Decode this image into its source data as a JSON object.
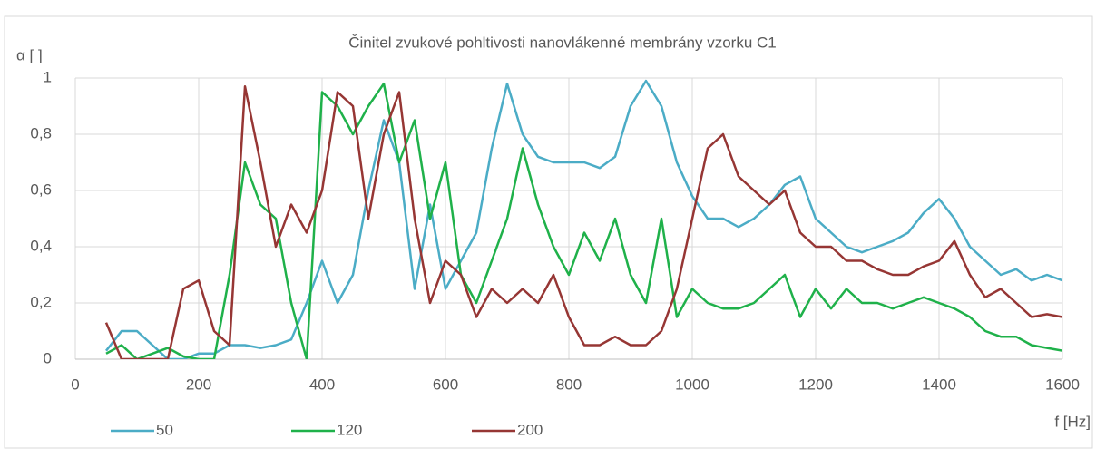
{
  "chart_data": {
    "type": "line",
    "title": "Činitel zvukové pohltivosti nanovlákenné membrány vzorku C1",
    "y_label": "α [ ]",
    "x_label": "f [Hz]",
    "x": [
      50,
      75,
      100,
      125,
      150,
      175,
      200,
      225,
      250,
      275,
      300,
      325,
      350,
      375,
      400,
      425,
      450,
      475,
      500,
      525,
      550,
      575,
      600,
      625,
      650,
      675,
      700,
      725,
      750,
      775,
      800,
      825,
      850,
      875,
      900,
      925,
      950,
      975,
      1000,
      1025,
      1050,
      1075,
      1100,
      1125,
      1150,
      1175,
      1200,
      1225,
      1250,
      1275,
      1300,
      1325,
      1350,
      1375,
      1400,
      1425,
      1450,
      1475,
      1500,
      1525,
      1550,
      1575,
      1600
    ],
    "series": [
      {
        "name": "50",
        "color": "#4bacc6",
        "values": [
          0.03,
          0.1,
          0.1,
          0.05,
          0.0,
          0.0,
          0.02,
          0.02,
          0.05,
          0.05,
          0.04,
          0.05,
          0.07,
          0.2,
          0.35,
          0.2,
          0.3,
          0.6,
          0.85,
          0.7,
          0.25,
          0.55,
          0.25,
          0.35,
          0.45,
          0.75,
          0.98,
          0.8,
          0.72,
          0.7,
          0.7,
          0.7,
          0.68,
          0.72,
          0.9,
          0.99,
          0.9,
          0.7,
          0.58,
          0.5,
          0.5,
          0.47,
          0.5,
          0.55,
          0.62,
          0.65,
          0.5,
          0.45,
          0.4,
          0.38,
          0.4,
          0.42,
          0.45,
          0.52,
          0.57,
          0.5,
          0.4,
          0.35,
          0.3,
          0.32,
          0.28,
          0.3,
          0.28
        ]
      },
      {
        "name": "120",
        "color": "#1fb14a",
        "values": [
          0.02,
          0.05,
          0.0,
          0.02,
          0.04,
          0.01,
          0.0,
          0.0,
          0.3,
          0.7,
          0.55,
          0.5,
          0.2,
          0.0,
          0.95,
          0.9,
          0.8,
          0.9,
          0.98,
          0.7,
          0.85,
          0.5,
          0.7,
          0.3,
          0.2,
          0.35,
          0.5,
          0.75,
          0.55,
          0.4,
          0.3,
          0.45,
          0.35,
          0.5,
          0.3,
          0.2,
          0.5,
          0.15,
          0.25,
          0.2,
          0.18,
          0.18,
          0.2,
          0.25,
          0.3,
          0.15,
          0.25,
          0.18,
          0.25,
          0.2,
          0.2,
          0.18,
          0.2,
          0.22,
          0.2,
          0.18,
          0.15,
          0.1,
          0.08,
          0.08,
          0.05,
          0.04,
          0.03
        ]
      },
      {
        "name": "200",
        "color": "#963634",
        "values": [
          0.13,
          0.0,
          0.0,
          0.0,
          0.0,
          0.25,
          0.28,
          0.1,
          0.05,
          0.97,
          0.7,
          0.4,
          0.55,
          0.45,
          0.6,
          0.95,
          0.9,
          0.5,
          0.8,
          0.95,
          0.5,
          0.2,
          0.35,
          0.3,
          0.15,
          0.25,
          0.2,
          0.25,
          0.2,
          0.3,
          0.15,
          0.05,
          0.05,
          0.08,
          0.05,
          0.05,
          0.1,
          0.25,
          0.5,
          0.75,
          0.8,
          0.65,
          0.6,
          0.55,
          0.6,
          0.45,
          0.4,
          0.4,
          0.35,
          0.35,
          0.32,
          0.3,
          0.3,
          0.33,
          0.35,
          0.42,
          0.3,
          0.22,
          0.25,
          0.2,
          0.15,
          0.16,
          0.15
        ]
      }
    ],
    "xlim": [
      0,
      1600
    ],
    "xticks": [
      0,
      200,
      400,
      600,
      800,
      1000,
      1200,
      1400,
      1600
    ],
    "ylim": [
      0,
      1
    ],
    "yticks": [
      0,
      {
        "value": 0.2,
        "label": "0,2"
      },
      {
        "value": 0.4,
        "label": "0,4"
      },
      {
        "value": 0.6,
        "label": "0,6"
      },
      {
        "value": 0.8,
        "label": "0,8"
      },
      1
    ],
    "grid": true,
    "legend": "bottom"
  }
}
